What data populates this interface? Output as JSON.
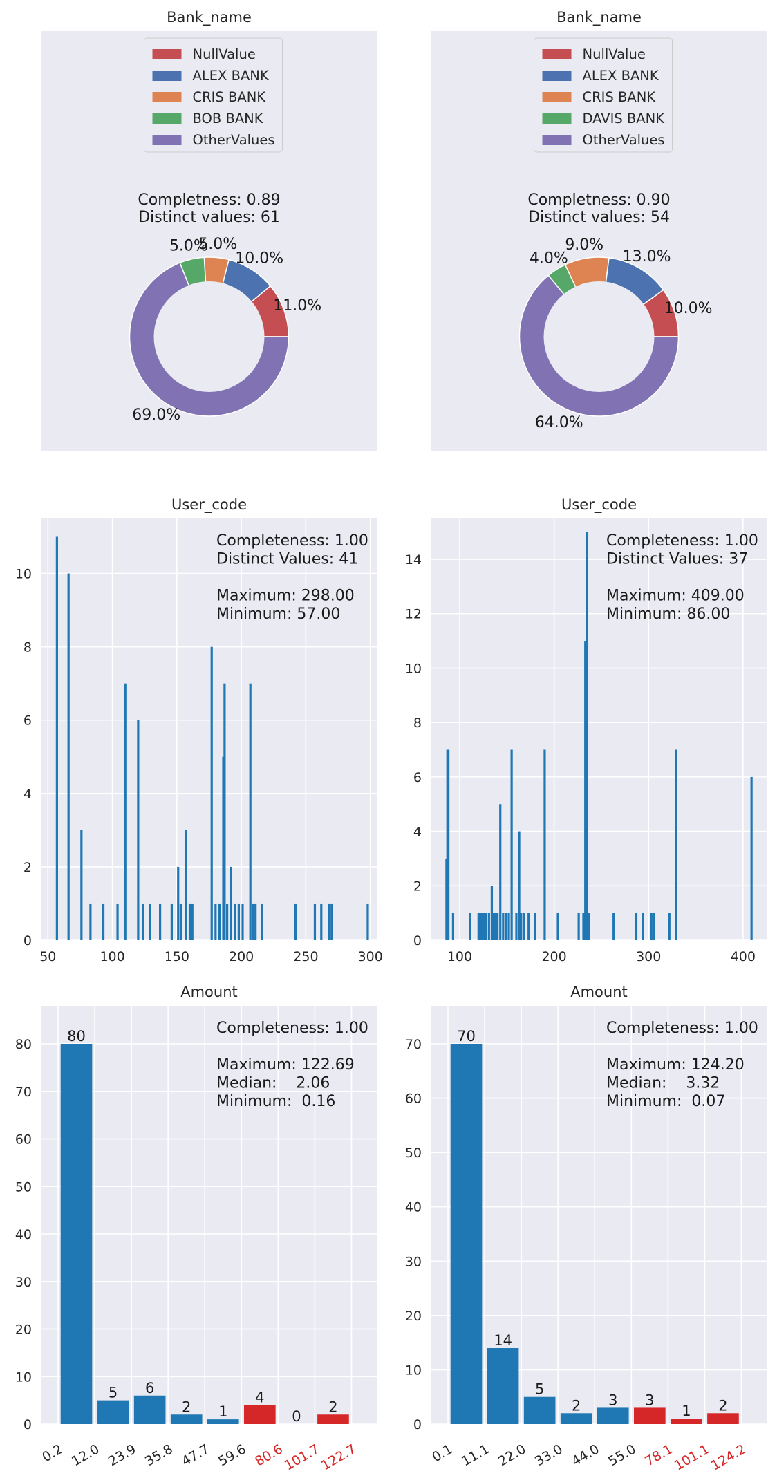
{
  "chart_data": [
    {
      "type": "pie",
      "title": "Bank_name",
      "legend_placement": "upper-center",
      "labels": [
        "NullValue",
        "ALEX BANK",
        "CRIS BANK",
        "BOB BANK",
        "OtherValues"
      ],
      "values": [
        11.0,
        10.0,
        5.0,
        5.0,
        69.0
      ],
      "value_labels": [
        "11.0%",
        "10.0%",
        "5.0%",
        "5.0%",
        "69.0%"
      ],
      "colors": [
        "#c44e52",
        "#4c72b0",
        "#dd8452",
        "#55a868",
        "#8172b3"
      ],
      "annotation": [
        "Completness: 0.89",
        "Distinct values: 61"
      ]
    },
    {
      "type": "pie",
      "title": "Bank_name",
      "legend_placement": "upper-center",
      "labels": [
        "NullValue",
        "ALEX BANK",
        "CRIS BANK",
        "DAVIS BANK",
        "OtherValues"
      ],
      "values": [
        10.0,
        13.0,
        9.0,
        4.0,
        64.0
      ],
      "value_labels": [
        "10.0%",
        "13.0%",
        "9.0%",
        "4.0%",
        "64.0%"
      ],
      "colors": [
        "#c44e52",
        "#4c72b0",
        "#dd8452",
        "#55a868",
        "#8172b3"
      ],
      "annotation": [
        "Completness: 0.90",
        "Distinct values: 54"
      ]
    },
    {
      "type": "bar",
      "title": "User_code",
      "grid": true,
      "xlim": [
        45,
        305
      ],
      "ylim": [
        0,
        11.5
      ],
      "xticks": [
        50,
        100,
        150,
        200,
        250,
        300
      ],
      "yticks": [
        0,
        2,
        4,
        6,
        8,
        10
      ],
      "bar_color": "#1f77b4",
      "x": [
        57,
        66,
        76,
        83,
        93,
        104,
        110,
        120,
        124,
        129,
        137,
        146,
        151,
        153,
        157,
        160,
        162,
        177,
        180,
        183,
        186,
        187,
        189,
        192,
        195,
        198,
        201,
        207,
        209,
        211,
        216,
        242,
        257,
        262,
        268,
        270,
        298
      ],
      "values": [
        11,
        10,
        3,
        1,
        1,
        1,
        7,
        6,
        1,
        1,
        1,
        1,
        2,
        1,
        3,
        1,
        1,
        8,
        1,
        1,
        5,
        7,
        1,
        2,
        1,
        1,
        1,
        7,
        1,
        1,
        1,
        1,
        1,
        1,
        1,
        1,
        1
      ],
      "annotation": [
        "Completeness: 1.00",
        "Distinct Values: 41",
        "",
        "Maximum: 298.00",
        "Minimum: 57.00"
      ]
    },
    {
      "type": "bar",
      "title": "User_code",
      "grid": true,
      "xlim": [
        70,
        425
      ],
      "ylim": [
        0,
        15.5
      ],
      "xticks": [
        100,
        200,
        300,
        400
      ],
      "yticks": [
        0,
        2,
        4,
        6,
        8,
        10,
        12,
        14
      ],
      "bar_color": "#1f77b4",
      "x": [
        86,
        87,
        88,
        93,
        111,
        120,
        122,
        124,
        126,
        128,
        131,
        134,
        136,
        138,
        140,
        143,
        146,
        149,
        152,
        155,
        160,
        163,
        165,
        168,
        173,
        180,
        190,
        204,
        226,
        231,
        233,
        235,
        237,
        263,
        287,
        294,
        303,
        306,
        322,
        329,
        409
      ],
      "values": [
        3,
        7,
        7,
        1,
        1,
        1,
        1,
        1,
        1,
        1,
        1,
        2,
        1,
        1,
        1,
        5,
        1,
        1,
        1,
        7,
        1,
        4,
        1,
        1,
        1,
        1,
        7,
        1,
        1,
        1,
        11,
        15,
        1,
        1,
        1,
        1,
        1,
        1,
        1,
        7,
        6
      ],
      "annotation": [
        "Completeness: 1.00",
        "Distinct Values: 37",
        "",
        "Maximum: 409.00",
        "Minimum: 86.00"
      ]
    },
    {
      "type": "bar",
      "title": "Amount",
      "grid": true,
      "ylim": [
        0,
        88
      ],
      "yticks": [
        0,
        10,
        20,
        30,
        40,
        50,
        60,
        70,
        80
      ],
      "categories": [
        "0.2",
        "12.0",
        "23.9",
        "35.8",
        "47.7",
        "59.6",
        "80.6",
        "101.7",
        "122.7"
      ],
      "values": [
        null,
        80,
        5,
        6,
        2,
        1,
        4,
        0,
        2
      ],
      "value_labels": [
        "",
        "80",
        "5",
        "6",
        "2",
        "1",
        "4",
        "0",
        "2"
      ],
      "bar_colors": [
        "#1f77b4",
        "#1f77b4",
        "#1f77b4",
        "#1f77b4",
        "#1f77b4",
        "#1f77b4",
        "#d62728",
        "#d62728",
        "#d62728"
      ],
      "tick_colors": [
        "#262626",
        "#262626",
        "#262626",
        "#262626",
        "#262626",
        "#262626",
        "#d62728",
        "#d62728",
        "#d62728"
      ],
      "annotation": [
        "Completeness: 1.00",
        "",
        "Maximum: 122.69",
        "Median:    2.06",
        "Minimum:  0.16"
      ]
    },
    {
      "type": "bar",
      "title": "Amount",
      "grid": true,
      "ylim": [
        0,
        77
      ],
      "yticks": [
        0,
        10,
        20,
        30,
        40,
        50,
        60,
        70
      ],
      "categories": [
        "0.1",
        "11.1",
        "22.0",
        "33.0",
        "44.0",
        "55.0",
        "78.1",
        "101.1",
        "124.2"
      ],
      "values": [
        null,
        70,
        14,
        5,
        2,
        3,
        3,
        1,
        2
      ],
      "value_labels": [
        "",
        "70",
        "14",
        "5",
        "2",
        "3",
        "3",
        "1",
        "2"
      ],
      "bar_colors": [
        "#1f77b4",
        "#1f77b4",
        "#1f77b4",
        "#1f77b4",
        "#1f77b4",
        "#1f77b4",
        "#d62728",
        "#d62728",
        "#d62728"
      ],
      "tick_colors": [
        "#262626",
        "#262626",
        "#262626",
        "#262626",
        "#262626",
        "#262626",
        "#d62728",
        "#d62728",
        "#d62728"
      ],
      "annotation": [
        "Completeness: 1.00",
        "",
        "Maximum: 124.20",
        "Median:    3.32",
        "Minimum:  0.07"
      ]
    }
  ]
}
